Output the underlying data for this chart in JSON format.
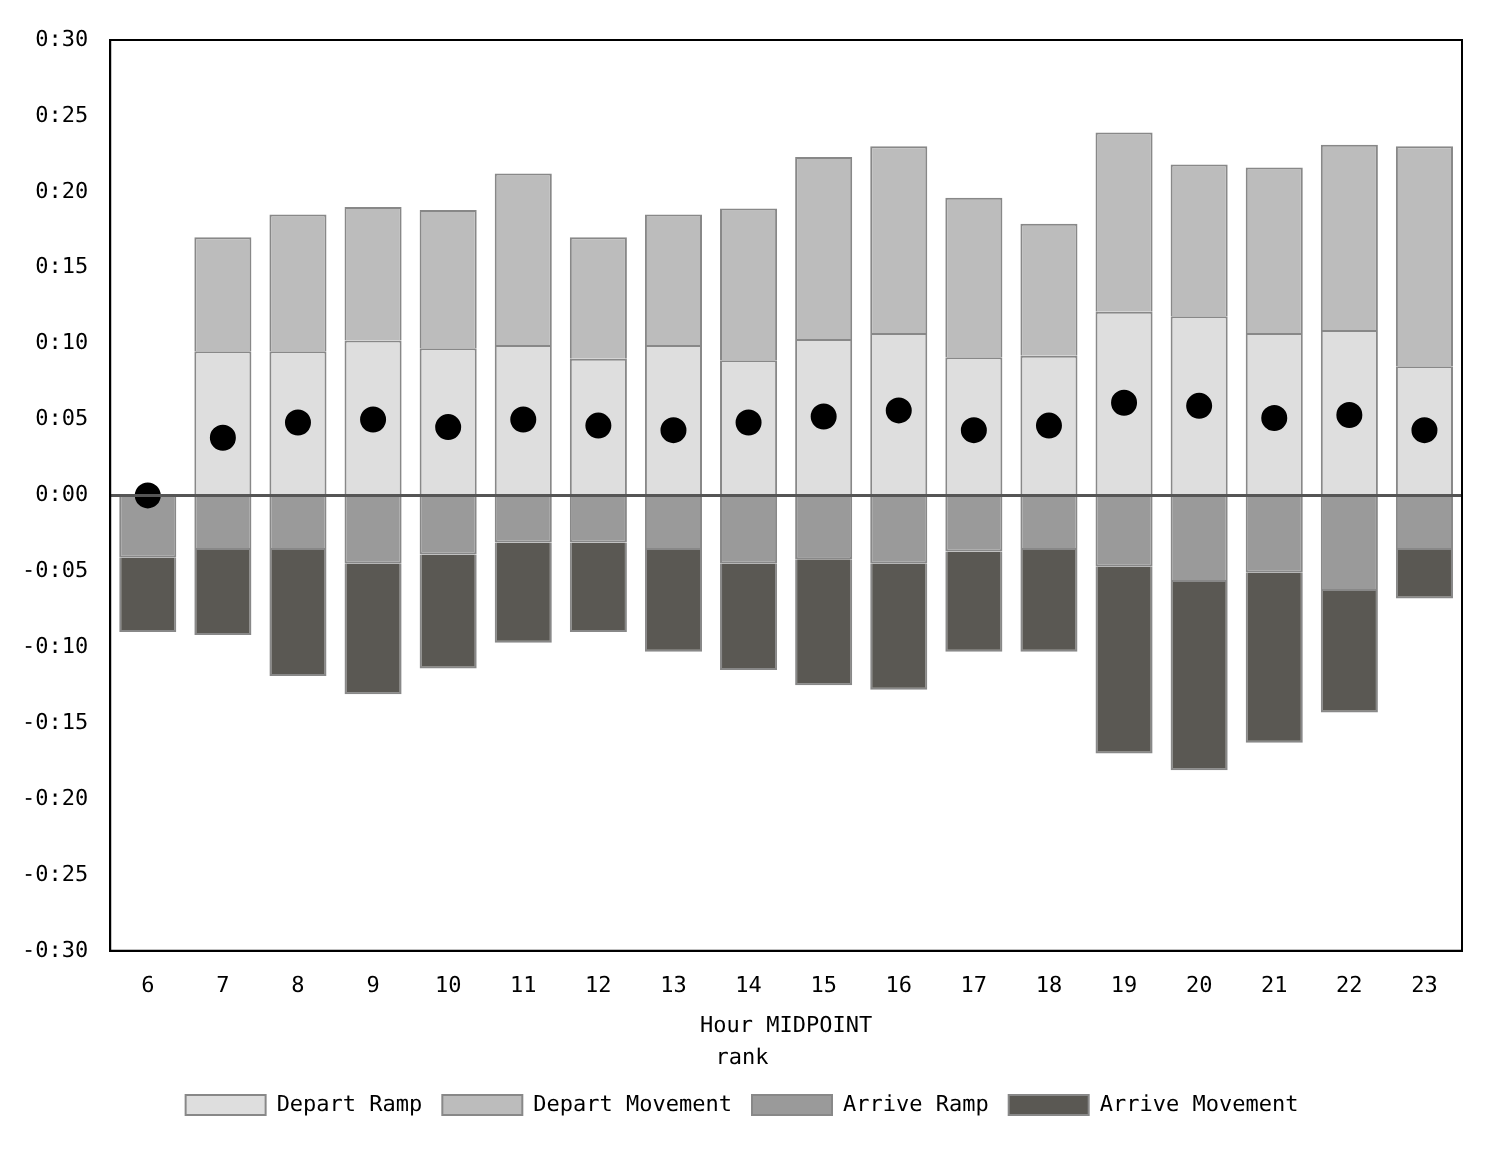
{
  "chart_data": {
    "type": "bar",
    "xlabel": "Hour MIDPOINT",
    "legend_title": "rank",
    "stacked": true,
    "legend": "bottom",
    "grid": false,
    "categories": [
      "6",
      "7",
      "8",
      "9",
      "10",
      "11",
      "12",
      "13",
      "14",
      "15",
      "16",
      "17",
      "18",
      "19",
      "20",
      "21",
      "22",
      "23"
    ],
    "series": [
      {
        "name": "Depart Ramp",
        "color": "#dedede",
        "values": [
          0,
          9.5,
          9.5,
          10.2,
          9.7,
          9.9,
          9.0,
          9.9,
          8.9,
          10.3,
          10.7,
          9.1,
          9.2,
          12.1,
          11.8,
          10.7,
          10.9,
          8.5
        ]
      },
      {
        "name": "Depart Movement",
        "color": "#bcbcbc",
        "values": [
          0,
          7.5,
          9.0,
          8.8,
          9.1,
          11.3,
          8.0,
          8.6,
          10.0,
          12.0,
          12.3,
          10.5,
          8.7,
          11.8,
          10.0,
          10.9,
          12.2,
          14.5
        ]
      },
      {
        "name": "Arrive Ramp",
        "color": "#9a9a9a",
        "values": [
          -4.1,
          -3.6,
          -3.6,
          -4.5,
          -3.9,
          -3.1,
          -3.1,
          -3.6,
          -4.5,
          -4.2,
          -4.5,
          -3.7,
          -3.6,
          -4.7,
          -5.7,
          -5.1,
          -6.3,
          -3.6
        ]
      },
      {
        "name": "Arrive Movement",
        "color": "#5a5853",
        "values": [
          -4.9,
          -5.6,
          -8.3,
          -8.6,
          -7.5,
          -6.6,
          -5.9,
          -6.7,
          -7.0,
          -8.3,
          -8.3,
          -6.6,
          -6.7,
          -12.3,
          -12.4,
          -11.2,
          -8.0,
          -3.2
        ]
      },
      {
        "type": "scatter",
        "color": "#000000",
        "marker": "circle",
        "x": [
          "6",
          "7",
          "8",
          "9",
          "10",
          "11",
          "12",
          "13",
          "14",
          "15",
          "16",
          "17",
          "18",
          "19",
          "20",
          "21",
          "22",
          "23"
        ],
        "values": [
          0,
          3.8,
          4.8,
          5.0,
          4.5,
          5.0,
          4.6,
          4.3,
          4.8,
          5.2,
          5.6,
          4.3,
          4.6,
          6.1,
          5.9,
          5.1,
          5.3,
          4.3
        ]
      }
    ],
    "ylim": [
      -30,
      30
    ],
    "yticks": [
      {
        "value": -30,
        "label": "-0:30"
      },
      {
        "value": -25,
        "label": "-0:25"
      },
      {
        "value": -20,
        "label": "-0:20"
      },
      {
        "value": -15,
        "label": "-0:15"
      },
      {
        "value": -10,
        "label": "-0:10"
      },
      {
        "value": -5,
        "label": "-0:05"
      },
      {
        "value": 0,
        "label": "0:00"
      },
      {
        "value": 5,
        "label": "0:05"
      },
      {
        "value": 10,
        "label": "0:10"
      },
      {
        "value": 15,
        "label": "0:15"
      },
      {
        "value": 20,
        "label": "0:20"
      },
      {
        "value": 25,
        "label": "0:25"
      },
      {
        "value": 30,
        "label": "0:30"
      }
    ],
    "ref_lines": [
      {
        "axis": "y",
        "value": 0,
        "color": "#555555"
      }
    ]
  }
}
